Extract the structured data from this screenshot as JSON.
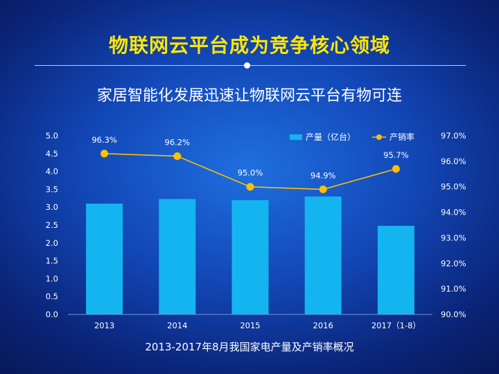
{
  "slide": {
    "title": "物联网云平台成为竞争核心领域",
    "subtitle": "家居智能化发展迅速让物联网云平台有物可连",
    "caption": "2013-2017年8月我国家电产量及产销率概况"
  },
  "colors": {
    "bar": "#14b4f0",
    "line": "#ffc000",
    "title": "#ffe600"
  },
  "chart_data": {
    "type": "bar",
    "categories": [
      "2013",
      "2014",
      "2015",
      "2016",
      "2017（1-8）"
    ],
    "series": [
      {
        "name": "产量（亿台）",
        "type": "bar",
        "axis": "left",
        "values": [
          3.1,
          3.23,
          3.2,
          3.3,
          2.48
        ]
      },
      {
        "name": "产销率",
        "type": "line",
        "axis": "right",
        "values": [
          96.3,
          96.2,
          95.0,
          94.9,
          95.7
        ],
        "labels": [
          "96.3%",
          "96.2%",
          "95.0%",
          "94.9%",
          "95.7%"
        ]
      }
    ],
    "y_left": {
      "min": 0,
      "max": 5,
      "ticks": [
        "0.0",
        "0.5",
        "1.0",
        "1.5",
        "2.0",
        "2.5",
        "3.0",
        "3.5",
        "4.0",
        "4.5",
        "5.0"
      ]
    },
    "y_right": {
      "min": 90,
      "max": 97,
      "ticks": [
        "90.0%",
        "91.0%",
        "92.0%",
        "93.0%",
        "94.0%",
        "95.0%",
        "96.0%",
        "97.0%"
      ]
    },
    "legend": {
      "position": "top-right",
      "items": [
        "产量（亿台）",
        "产销率"
      ]
    },
    "grid": false
  }
}
